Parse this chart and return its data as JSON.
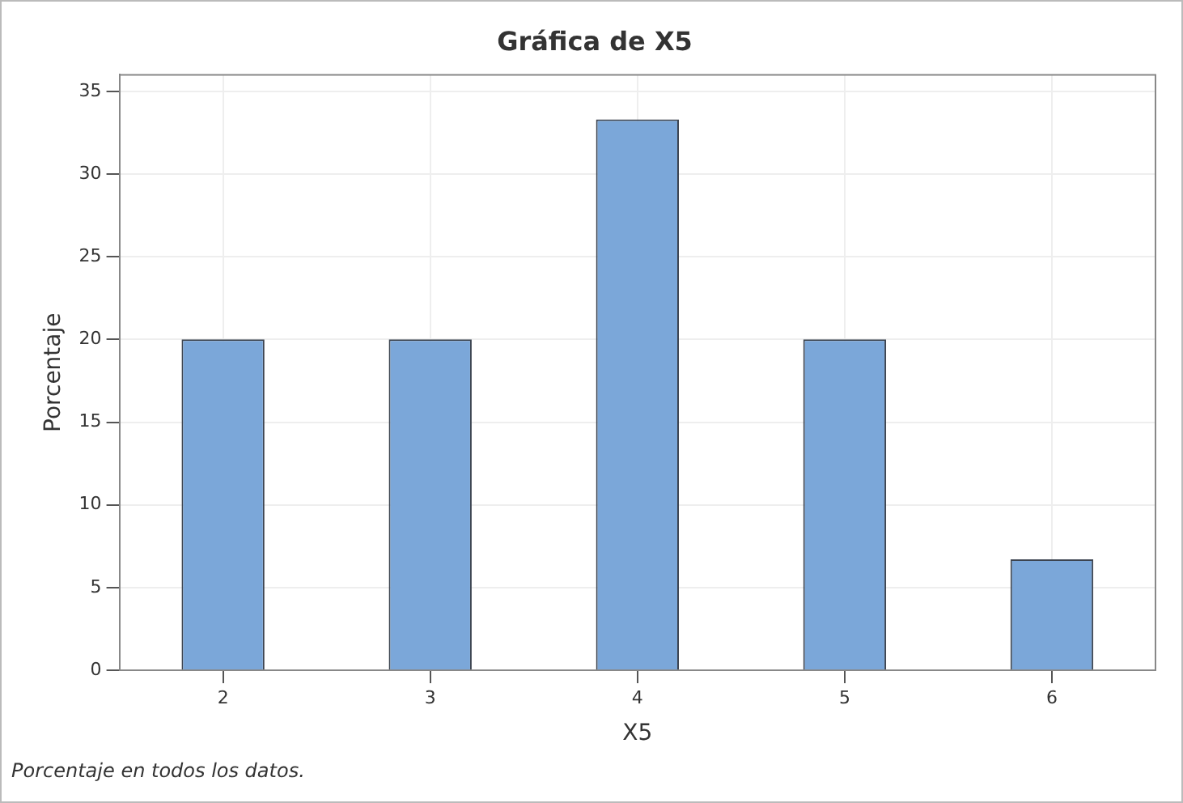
{
  "chart_data": {
    "type": "bar",
    "title": "Gráfica de X5",
    "xlabel": "X5",
    "ylabel": "Porcentaje",
    "categories": [
      "2",
      "3",
      "4",
      "5",
      "6"
    ],
    "values": [
      20,
      20,
      33.3,
      20,
      6.7
    ],
    "color": "#7ba7d9",
    "ylim": [
      0,
      36
    ],
    "yticks": [
      0,
      5,
      10,
      15,
      20,
      25,
      30,
      35
    ],
    "grid": true,
    "annotations": [
      "Porcentaje en todos los datos."
    ]
  }
}
